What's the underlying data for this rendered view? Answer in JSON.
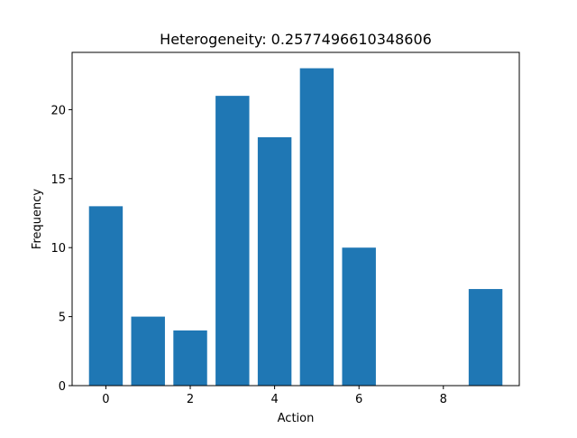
{
  "chart_data": {
    "type": "bar",
    "title": "Heterogeneity: 0.2577496610348606",
    "xlabel": "Action",
    "ylabel": "Frequency",
    "x": [
      0,
      1,
      2,
      3,
      4,
      5,
      6,
      7,
      8,
      9
    ],
    "values": [
      13,
      5,
      4,
      21,
      18,
      23,
      10,
      0,
      0,
      7
    ],
    "xlim": [
      -0.8,
      9.8
    ],
    "ylim": [
      0,
      24.15
    ],
    "xticks": [
      0,
      2,
      4,
      6,
      8
    ],
    "yticks": [
      0,
      5,
      10,
      15,
      20
    ],
    "bar_width": 0.8,
    "bar_color": "#1f77b4",
    "grid": false,
    "legend": "none"
  }
}
